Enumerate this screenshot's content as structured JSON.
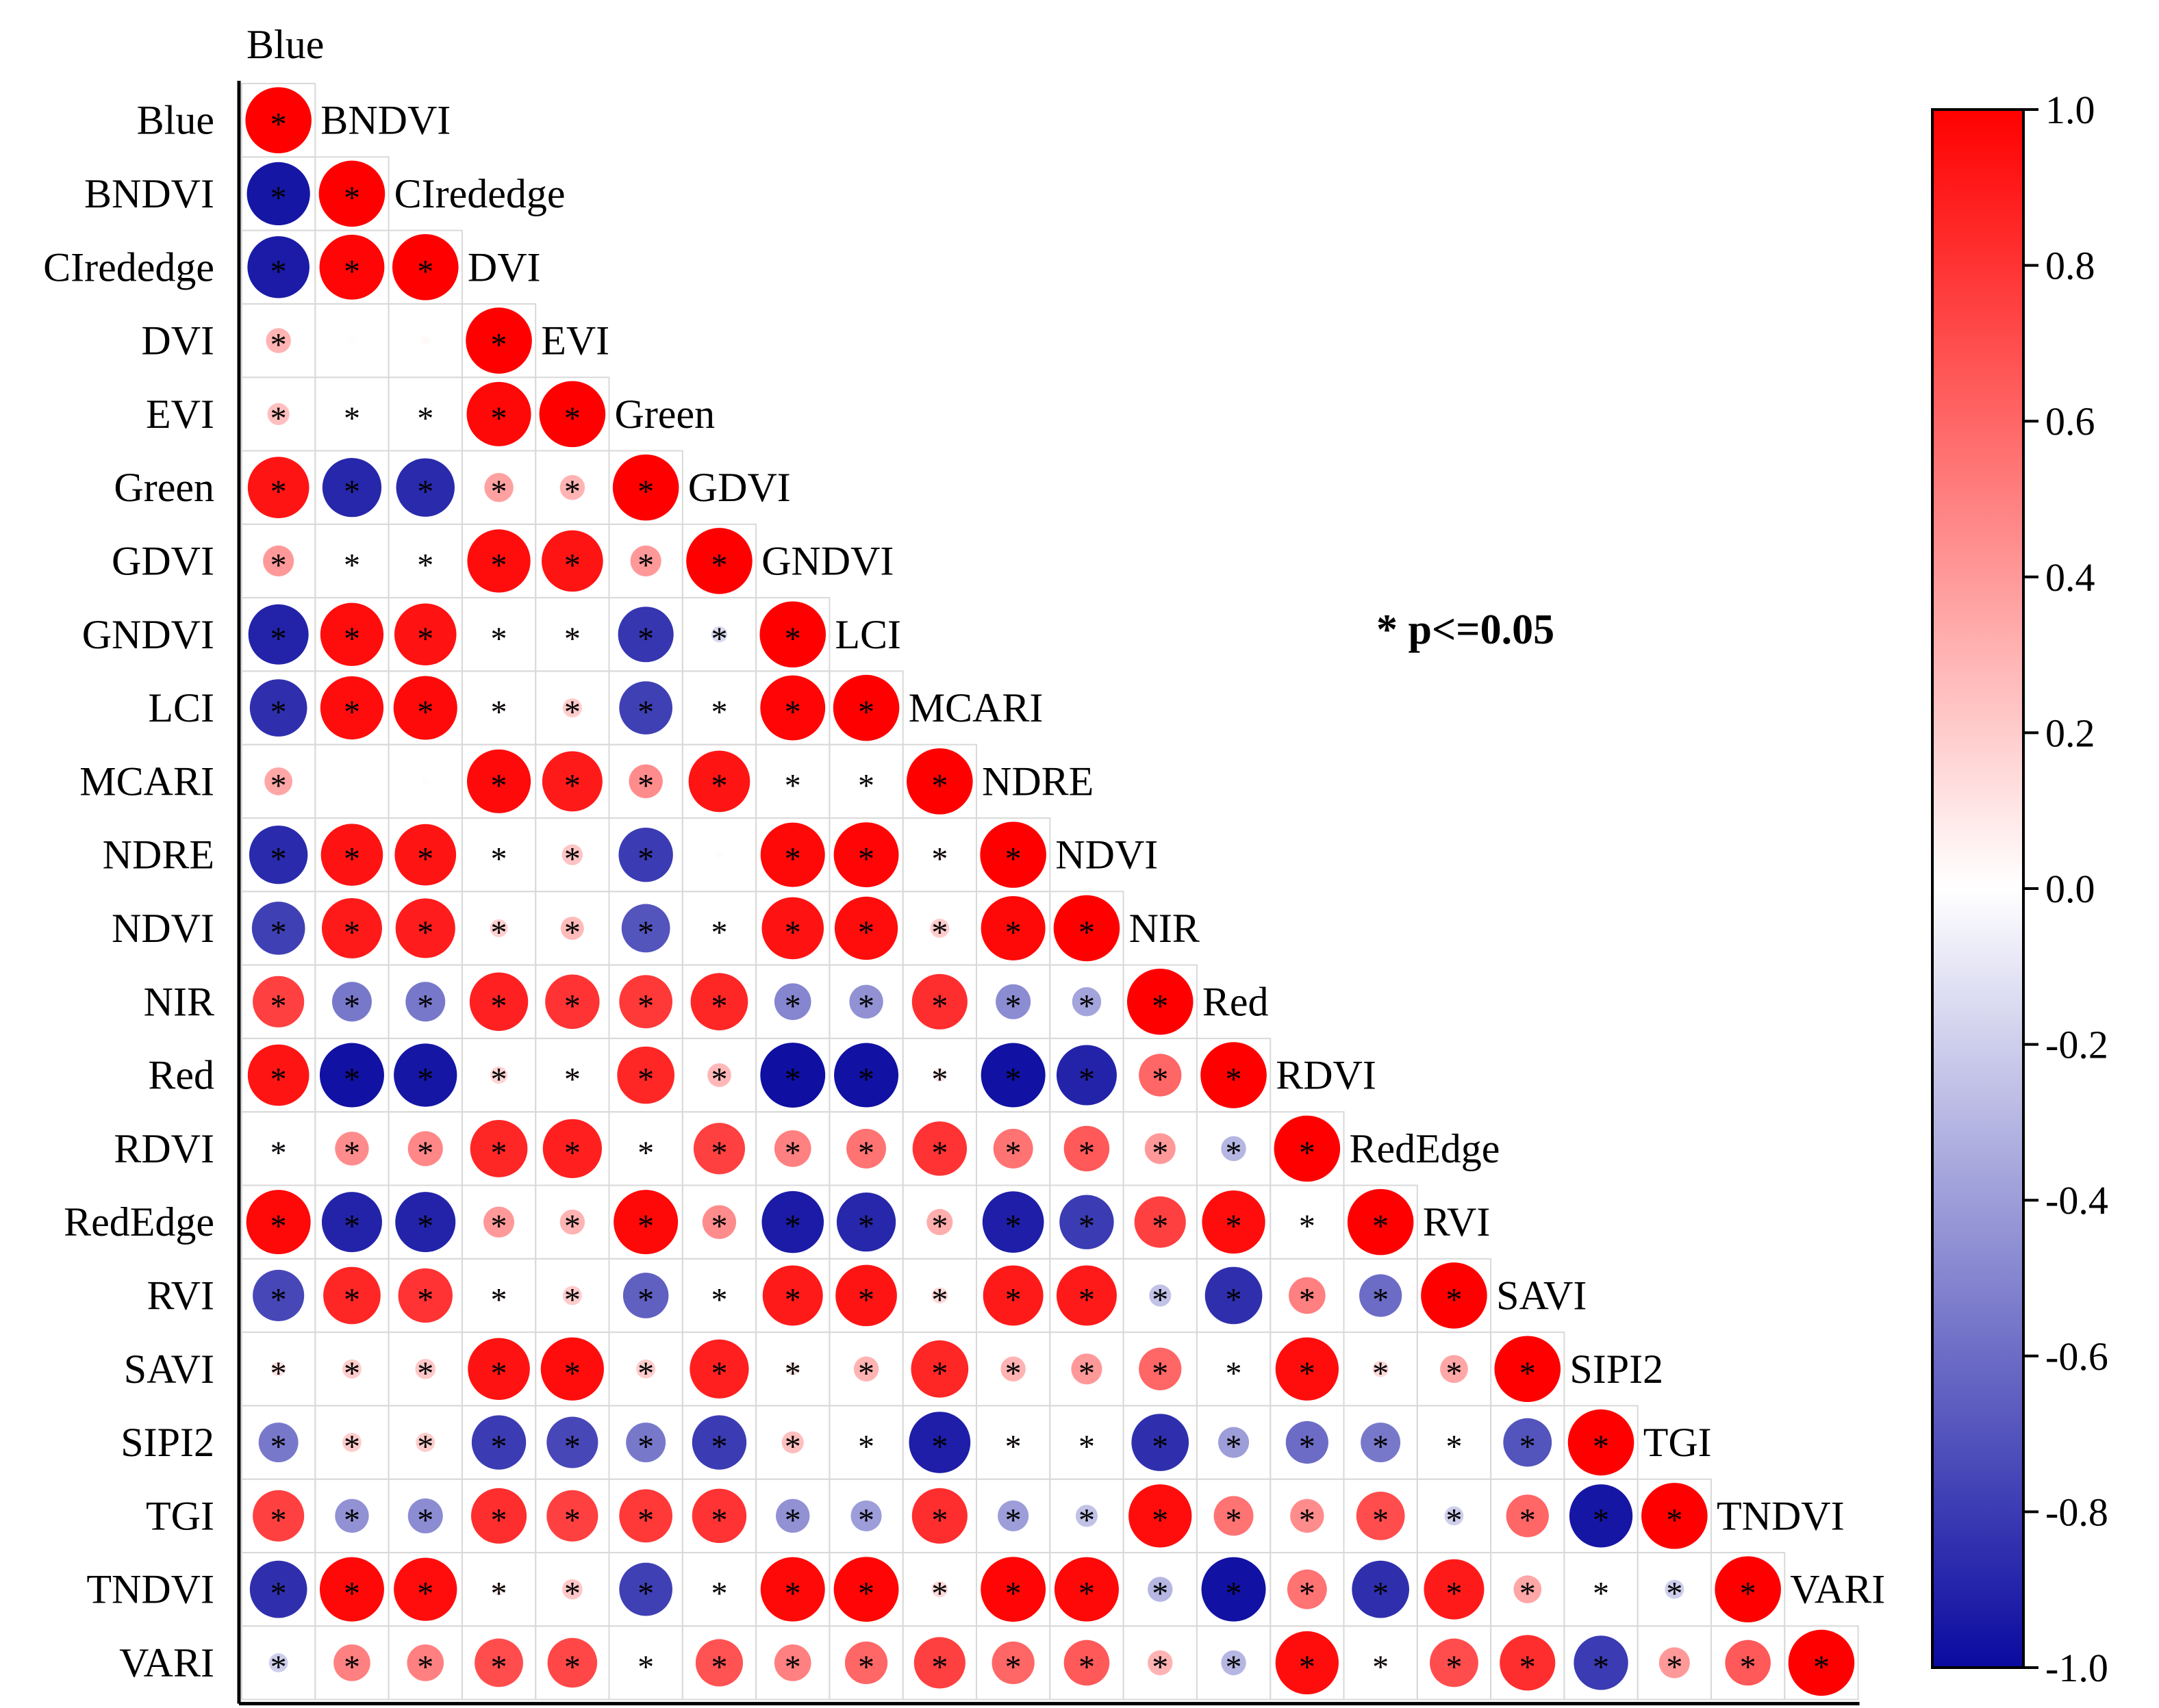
{
  "chart_data": {
    "type": "heatmap",
    "variables": [
      "Blue",
      "BNDVI",
      "CIrededge",
      "DVI",
      "EVI",
      "Green",
      "GDVI",
      "GNDVI",
      "LCI",
      "MCARI",
      "NDRE",
      "NDVI",
      "NIR",
      "Red",
      "RDVI",
      "RedEdge",
      "RVI",
      "SAVI",
      "SIPI2",
      "TGI",
      "TNDVI",
      "VARI"
    ],
    "matrix": [
      [
        1.0
      ],
      [
        -0.95,
        1.0
      ],
      [
        -0.93,
        0.98,
        1.0
      ],
      [
        0.3,
        0.01,
        0.02,
        1.0
      ],
      [
        0.25,
        0.02,
        0.03,
        0.97,
        1.0
      ],
      [
        0.92,
        -0.88,
        -0.87,
        0.37,
        0.3,
        1.0
      ],
      [
        0.4,
        -0.02,
        -0.02,
        0.95,
        0.92,
        0.4,
        1.0
      ],
      [
        -0.9,
        0.95,
        0.93,
        0.02,
        0.05,
        -0.82,
        -0.15,
        1.0
      ],
      [
        -0.85,
        0.95,
        0.96,
        0.03,
        0.2,
        -0.78,
        0.04,
        0.98,
        1.0
      ],
      [
        0.35,
        0.0,
        0.01,
        0.96,
        0.9,
        0.45,
        0.92,
        0.02,
        0.03,
        1.0
      ],
      [
        -0.87,
        0.93,
        0.92,
        0.03,
        0.23,
        -0.8,
        0.01,
        0.97,
        0.98,
        0.05,
        1.0
      ],
      [
        -0.78,
        0.9,
        0.89,
        0.18,
        0.27,
        -0.7,
        0.05,
        0.93,
        0.95,
        0.2,
        0.97,
        1.0
      ],
      [
        0.75,
        -0.55,
        -0.55,
        0.87,
        0.8,
        0.78,
        0.85,
        -0.5,
        -0.45,
        0.82,
        -0.47,
        -0.37,
        1.0
      ],
      [
        0.92,
        -0.97,
        -0.95,
        0.17,
        0.04,
        0.85,
        0.28,
        -0.98,
        -0.97,
        0.1,
        -0.97,
        -0.9,
        0.6,
        1.0
      ],
      [
        -0.05,
        0.45,
        0.47,
        0.85,
        0.88,
        0.04,
        0.75,
        0.5,
        0.55,
        0.8,
        0.55,
        0.65,
        0.4,
        -0.3,
        1.0
      ],
      [
        0.97,
        -0.9,
        -0.9,
        0.4,
        0.3,
        0.97,
        0.45,
        -0.93,
        -0.88,
        0.32,
        -0.92,
        -0.8,
        0.75,
        0.95,
        -0.03,
        1.0
      ],
      [
        -0.75,
        0.85,
        0.8,
        0.05,
        0.2,
        -0.65,
        0.03,
        0.9,
        0.92,
        0.15,
        0.9,
        0.9,
        -0.25,
        -0.85,
        0.5,
        -0.6,
        1.0
      ],
      [
        0.12,
        0.2,
        0.22,
        0.93,
        0.95,
        0.2,
        0.88,
        0.1,
        0.3,
        0.85,
        0.3,
        0.4,
        0.6,
        0.03,
        0.95,
        0.15,
        0.35,
        1.0
      ],
      [
        -0.55,
        0.2,
        0.2,
        -0.8,
        -0.75,
        -0.55,
        -0.8,
        0.25,
        0.02,
        -0.92,
        0.05,
        0.03,
        -0.85,
        -0.4,
        -0.6,
        -0.55,
        0.02,
        -0.7,
        1.0
      ],
      [
        0.75,
        -0.45,
        -0.47,
        0.82,
        0.75,
        0.78,
        0.8,
        -0.45,
        -0.4,
        0.82,
        -0.4,
        -0.25,
        0.95,
        0.55,
        0.45,
        0.7,
        -0.2,
        0.6,
        -0.95,
        1.0
      ],
      [
        -0.85,
        0.97,
        0.95,
        0.08,
        0.22,
        -0.78,
        0.04,
        0.97,
        0.98,
        0.15,
        0.98,
        0.97,
        -0.3,
        -0.97,
        0.55,
        -0.85,
        0.9,
        0.35,
        -0.02,
        -0.2,
        1.0
      ],
      [
        -0.2,
        0.5,
        0.5,
        0.7,
        0.72,
        0.02,
        0.68,
        0.5,
        0.6,
        0.75,
        0.6,
        0.65,
        0.3,
        -0.3,
        0.95,
        0.05,
        0.7,
        0.82,
        -0.8,
        0.4,
        0.65,
        1.0
      ]
    ],
    "significant": [
      [
        1
      ],
      [
        1,
        1
      ],
      [
        1,
        1,
        1
      ],
      [
        1,
        0,
        0,
        1
      ],
      [
        1,
        1,
        1,
        1,
        1
      ],
      [
        1,
        1,
        1,
        1,
        1,
        1
      ],
      [
        1,
        1,
        1,
        1,
        1,
        1,
        1
      ],
      [
        1,
        1,
        1,
        1,
        1,
        1,
        1,
        1
      ],
      [
        1,
        1,
        1,
        1,
        1,
        1,
        1,
        1,
        1
      ],
      [
        1,
        0,
        0,
        1,
        1,
        1,
        1,
        1,
        1,
        1
      ],
      [
        1,
        1,
        1,
        1,
        1,
        1,
        0,
        1,
        1,
        1,
        1
      ],
      [
        1,
        1,
        1,
        1,
        1,
        1,
        1,
        1,
        1,
        1,
        1,
        1
      ],
      [
        1,
        1,
        1,
        1,
        1,
        1,
        1,
        1,
        1,
        1,
        1,
        1,
        1
      ],
      [
        1,
        1,
        1,
        1,
        1,
        1,
        1,
        1,
        1,
        1,
        1,
        1,
        1,
        1
      ],
      [
        1,
        1,
        1,
        1,
        1,
        1,
        1,
        1,
        1,
        1,
        1,
        1,
        1,
        1,
        1
      ],
      [
        1,
        1,
        1,
        1,
        1,
        1,
        1,
        1,
        1,
        1,
        1,
        1,
        1,
        1,
        1,
        1
      ],
      [
        1,
        1,
        1,
        1,
        1,
        1,
        1,
        1,
        1,
        1,
        1,
        1,
        1,
        1,
        1,
        1,
        1
      ],
      [
        1,
        1,
        1,
        1,
        1,
        1,
        1,
        1,
        1,
        1,
        1,
        1,
        1,
        1,
        1,
        1,
        1,
        1
      ],
      [
        1,
        1,
        1,
        1,
        1,
        1,
        1,
        1,
        1,
        1,
        1,
        1,
        1,
        1,
        1,
        1,
        1,
        1,
        1
      ],
      [
        1,
        1,
        1,
        1,
        1,
        1,
        1,
        1,
        1,
        1,
        1,
        1,
        1,
        1,
        1,
        1,
        1,
        1,
        1,
        1
      ],
      [
        1,
        1,
        1,
        1,
        1,
        1,
        1,
        1,
        1,
        1,
        1,
        1,
        1,
        1,
        1,
        1,
        1,
        1,
        1,
        1,
        1
      ],
      [
        1,
        1,
        1,
        1,
        1,
        1,
        1,
        1,
        1,
        1,
        1,
        1,
        1,
        1,
        1,
        1,
        1,
        1,
        1,
        1,
        1,
        1
      ]
    ],
    "top_label": "Blue",
    "annotation": "* p<=0.05",
    "star_symbol": "*",
    "colorbar": {
      "ticks": [
        "1.0",
        "0.8",
        "0.6",
        "0.4",
        "0.2",
        "0.0",
        "-0.2",
        "-0.4",
        "-0.6",
        "-0.8",
        "-1.0"
      ],
      "range": [
        -1.0,
        1.0
      ],
      "low_color": "#0a0aa0",
      "mid_color": "#ffffff",
      "high_color": "#ff0000"
    },
    "grid_color": "#d9d9d9"
  }
}
